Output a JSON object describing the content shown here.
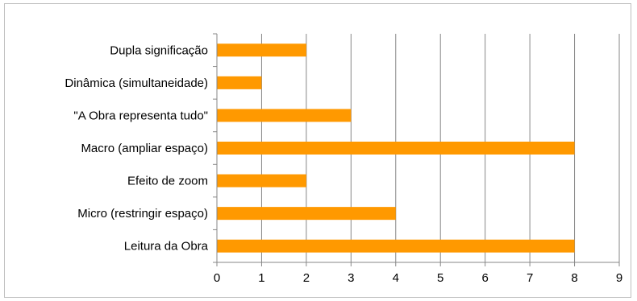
{
  "chart_data": {
    "type": "bar",
    "orientation": "horizontal",
    "categories": [
      "Leitura da Obra",
      "Micro (restringir espaço)",
      "Efeito de zoom",
      "Macro (ampliar espaço)",
      "\"A Obra representa tudo\"",
      "Dinâmica (simultaneidade)",
      "Dupla significação"
    ],
    "values": [
      8,
      4,
      2,
      8,
      3,
      1,
      2
    ],
    "xlim": [
      0,
      9
    ],
    "xticks": [
      "0",
      "1",
      "2",
      "3",
      "4",
      "5",
      "6",
      "7",
      "8",
      "9"
    ],
    "grid": "vertical",
    "legend": "none",
    "bar_color": "#FF9900",
    "title": "",
    "xlabel": "",
    "ylabel": ""
  }
}
